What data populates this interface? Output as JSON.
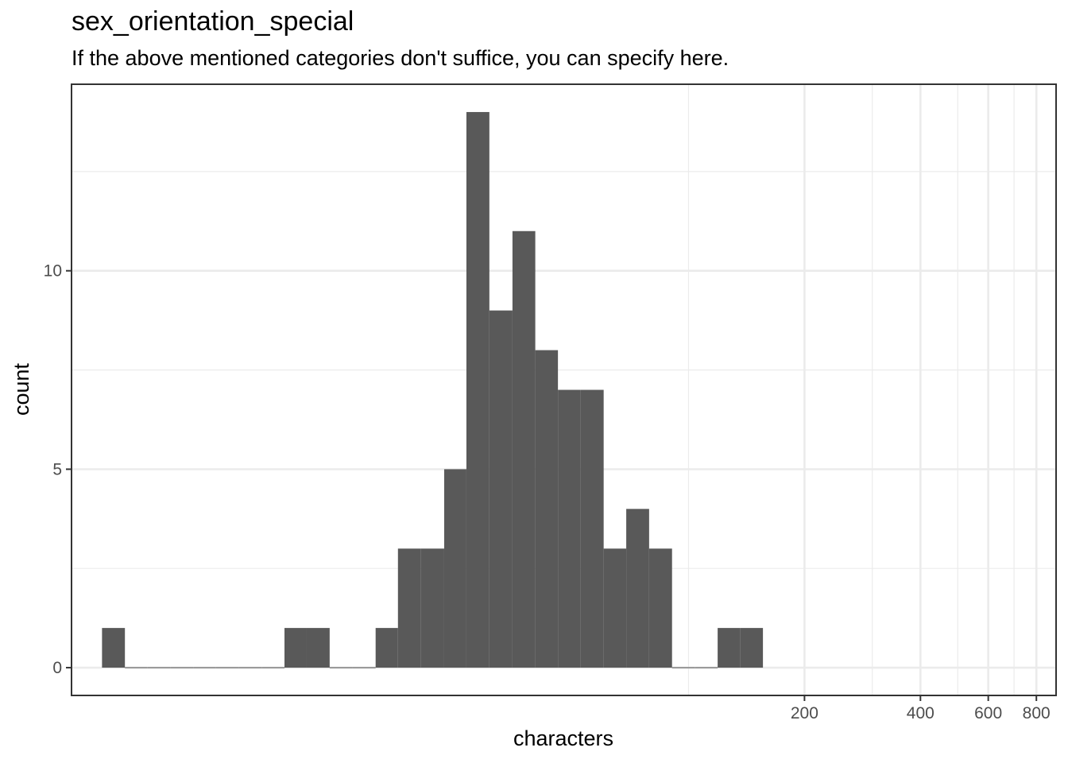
{
  "chart_data": {
    "type": "bar",
    "title": "sex_orientation_special",
    "subtitle": "If the above mentioned categories don't suffice, you can specify here.",
    "xlabel": "characters",
    "ylabel": "count",
    "x_scale": "log10",
    "xlim": [
      2.5,
      900
    ],
    "ylim": [
      -0.7,
      14.7
    ],
    "x_ticks": [
      200,
      400,
      600,
      800
    ],
    "x_tick_labels": [
      "200",
      "400",
      "600",
      "800"
    ],
    "x_minor_gridlines": [
      100,
      300,
      500,
      700
    ],
    "y_ticks": [
      0,
      5,
      10
    ],
    "y_tick_labels": [
      "0",
      "5",
      "10"
    ],
    "y_minor_gridlines": [
      2.5,
      7.5,
      12.5
    ],
    "grid": true,
    "bar_color": "#595959",
    "bins": [
      {
        "x_start": 3.0,
        "x_end": 3.44,
        "count": 1
      },
      {
        "x_start": 3.44,
        "x_end": 3.94,
        "count": 0
      },
      {
        "x_start": 3.94,
        "x_end": 4.52,
        "count": 0
      },
      {
        "x_start": 4.52,
        "x_end": 5.18,
        "count": 0
      },
      {
        "x_start": 5.18,
        "x_end": 5.93,
        "count": 0
      },
      {
        "x_start": 5.93,
        "x_end": 6.8,
        "count": 0
      },
      {
        "x_start": 6.8,
        "x_end": 7.79,
        "count": 0
      },
      {
        "x_start": 7.79,
        "x_end": 8.93,
        "count": 0
      },
      {
        "x_start": 8.93,
        "x_end": 10.2,
        "count": 1
      },
      {
        "x_start": 10.2,
        "x_end": 11.7,
        "count": 1
      },
      {
        "x_start": 11.7,
        "x_end": 13.4,
        "count": 0
      },
      {
        "x_start": 13.4,
        "x_end": 15.4,
        "count": 0
      },
      {
        "x_start": 15.4,
        "x_end": 17.6,
        "count": 1
      },
      {
        "x_start": 17.6,
        "x_end": 20.2,
        "count": 3
      },
      {
        "x_start": 20.2,
        "x_end": 23.2,
        "count": 3
      },
      {
        "x_start": 23.2,
        "x_end": 26.5,
        "count": 5
      },
      {
        "x_start": 26.5,
        "x_end": 30.4,
        "count": 14
      },
      {
        "x_start": 30.4,
        "x_end": 34.9,
        "count": 9
      },
      {
        "x_start": 34.9,
        "x_end": 40.0,
        "count": 11
      },
      {
        "x_start": 40.0,
        "x_end": 45.8,
        "count": 8
      },
      {
        "x_start": 45.8,
        "x_end": 52.5,
        "count": 7
      },
      {
        "x_start": 52.5,
        "x_end": 60.2,
        "count": 7
      },
      {
        "x_start": 60.2,
        "x_end": 68.9,
        "count": 3
      },
      {
        "x_start": 68.9,
        "x_end": 79.0,
        "count": 4
      },
      {
        "x_start": 79.0,
        "x_end": 90.6,
        "count": 3
      },
      {
        "x_start": 90.6,
        "x_end": 104,
        "count": 0
      },
      {
        "x_start": 104,
        "x_end": 119,
        "count": 0
      },
      {
        "x_start": 119,
        "x_end": 136,
        "count": 1
      },
      {
        "x_start": 136,
        "x_end": 156,
        "count": 1
      }
    ]
  }
}
